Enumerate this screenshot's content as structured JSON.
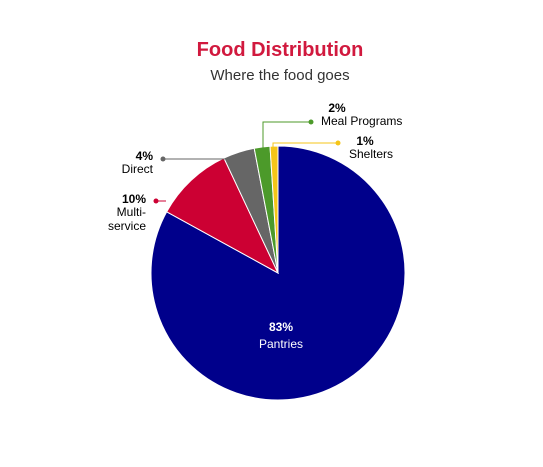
{
  "chart_data": {
    "type": "pie",
    "title": "Food Distribution",
    "subtitle": "Where the food goes",
    "title_color": "#d1193e",
    "slices": [
      {
        "id": "pantries",
        "pct_label": "83%",
        "name_lines": [
          "Pantries"
        ],
        "value": 83,
        "color": "#00008b"
      },
      {
        "id": "multi-service",
        "pct_label": "10%",
        "name_lines": [
          "Multi-",
          "service"
        ],
        "value": 10,
        "color": "#cc0033"
      },
      {
        "id": "direct",
        "pct_label": "4%",
        "name_lines": [
          "Direct"
        ],
        "value": 4,
        "color": "#666666"
      },
      {
        "id": "meal-programs",
        "pct_label": "2%",
        "name_lines": [
          "Meal Programs"
        ],
        "value": 2,
        "color": "#4c9a2a"
      },
      {
        "id": "shelters",
        "pct_label": "1%",
        "name_lines": [
          "Shelters"
        ],
        "value": 1,
        "color": "#f5c518"
      }
    ]
  }
}
